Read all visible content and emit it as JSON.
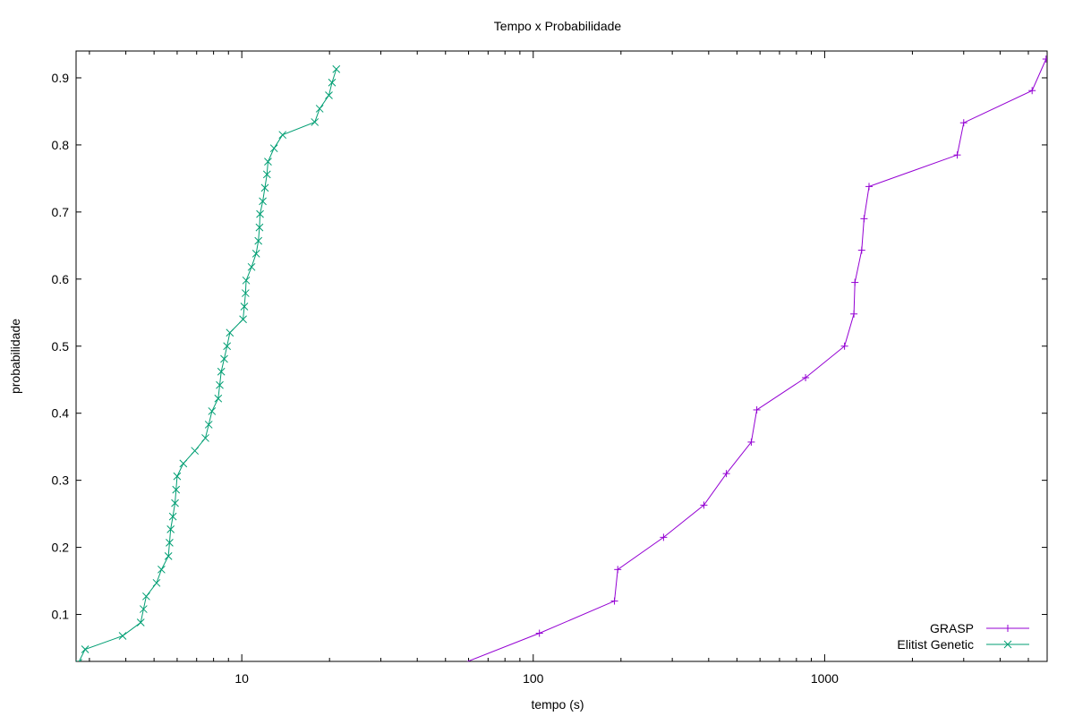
{
  "chart_data": {
    "type": "line",
    "title": "Tempo x Probabilidade",
    "xlabel": "tempo (s)",
    "ylabel": "probabilidade",
    "x_scale": "log",
    "xlim": [
      2.7,
      5800
    ],
    "ylim": [
      0.03,
      0.94
    ],
    "x_ticks": [
      {
        "value": 10,
        "label": "10"
      },
      {
        "value": 100,
        "label": "100"
      },
      {
        "value": 1000,
        "label": "1000"
      }
    ],
    "y_ticks": [
      {
        "value": 0.1,
        "label": "0.1"
      },
      {
        "value": 0.2,
        "label": "0.2"
      },
      {
        "value": 0.3,
        "label": "0.3"
      },
      {
        "value": 0.4,
        "label": "0.4"
      },
      {
        "value": 0.5,
        "label": "0.5"
      },
      {
        "value": 0.6,
        "label": "0.6"
      },
      {
        "value": 0.7,
        "label": "0.7"
      },
      {
        "value": 0.8,
        "label": "0.8"
      },
      {
        "value": 0.9,
        "label": "0.9"
      }
    ],
    "grid": false,
    "legend_position": "bottom-right",
    "series": [
      {
        "name": "GRASP",
        "color": "#9400d3",
        "marker": "plus",
        "x": [
          55,
          105,
          190,
          195,
          280,
          385,
          460,
          560,
          585,
          860,
          1170,
          1260,
          1270,
          1340,
          1365,
          1420,
          2850,
          3000,
          5150,
          5750
        ],
        "y": [
          0.024,
          0.072,
          0.12,
          0.167,
          0.215,
          0.263,
          0.31,
          0.357,
          0.405,
          0.453,
          0.5,
          0.548,
          0.595,
          0.643,
          0.69,
          0.738,
          0.785,
          0.833,
          0.881,
          0.928
        ]
      },
      {
        "name": "Elitist Genetic",
        "color": "#009e73",
        "marker": "cross",
        "x": [
          2.75,
          2.9,
          3.9,
          4.5,
          4.6,
          4.7,
          5.1,
          5.3,
          5.6,
          5.65,
          5.7,
          5.8,
          5.9,
          5.95,
          6.0,
          6.3,
          6.9,
          7.5,
          7.7,
          7.9,
          8.3,
          8.4,
          8.5,
          8.7,
          8.9,
          9.1,
          10.1,
          10.2,
          10.3,
          10.35,
          10.8,
          11.2,
          11.4,
          11.5,
          11.55,
          11.8,
          12.0,
          12.2,
          12.3,
          12.9,
          13.8,
          17.8,
          18.5,
          19.9,
          20.4,
          21.1
        ],
        "y": [
          0.028,
          0.048,
          0.068,
          0.088,
          0.108,
          0.127,
          0.147,
          0.167,
          0.187,
          0.207,
          0.227,
          0.246,
          0.266,
          0.286,
          0.306,
          0.325,
          0.344,
          0.363,
          0.383,
          0.403,
          0.422,
          0.442,
          0.462,
          0.481,
          0.5,
          0.52,
          0.54,
          0.559,
          0.579,
          0.598,
          0.618,
          0.638,
          0.657,
          0.677,
          0.697,
          0.716,
          0.736,
          0.756,
          0.775,
          0.795,
          0.815,
          0.834,
          0.854,
          0.874,
          0.893,
          0.913
        ]
      }
    ]
  }
}
